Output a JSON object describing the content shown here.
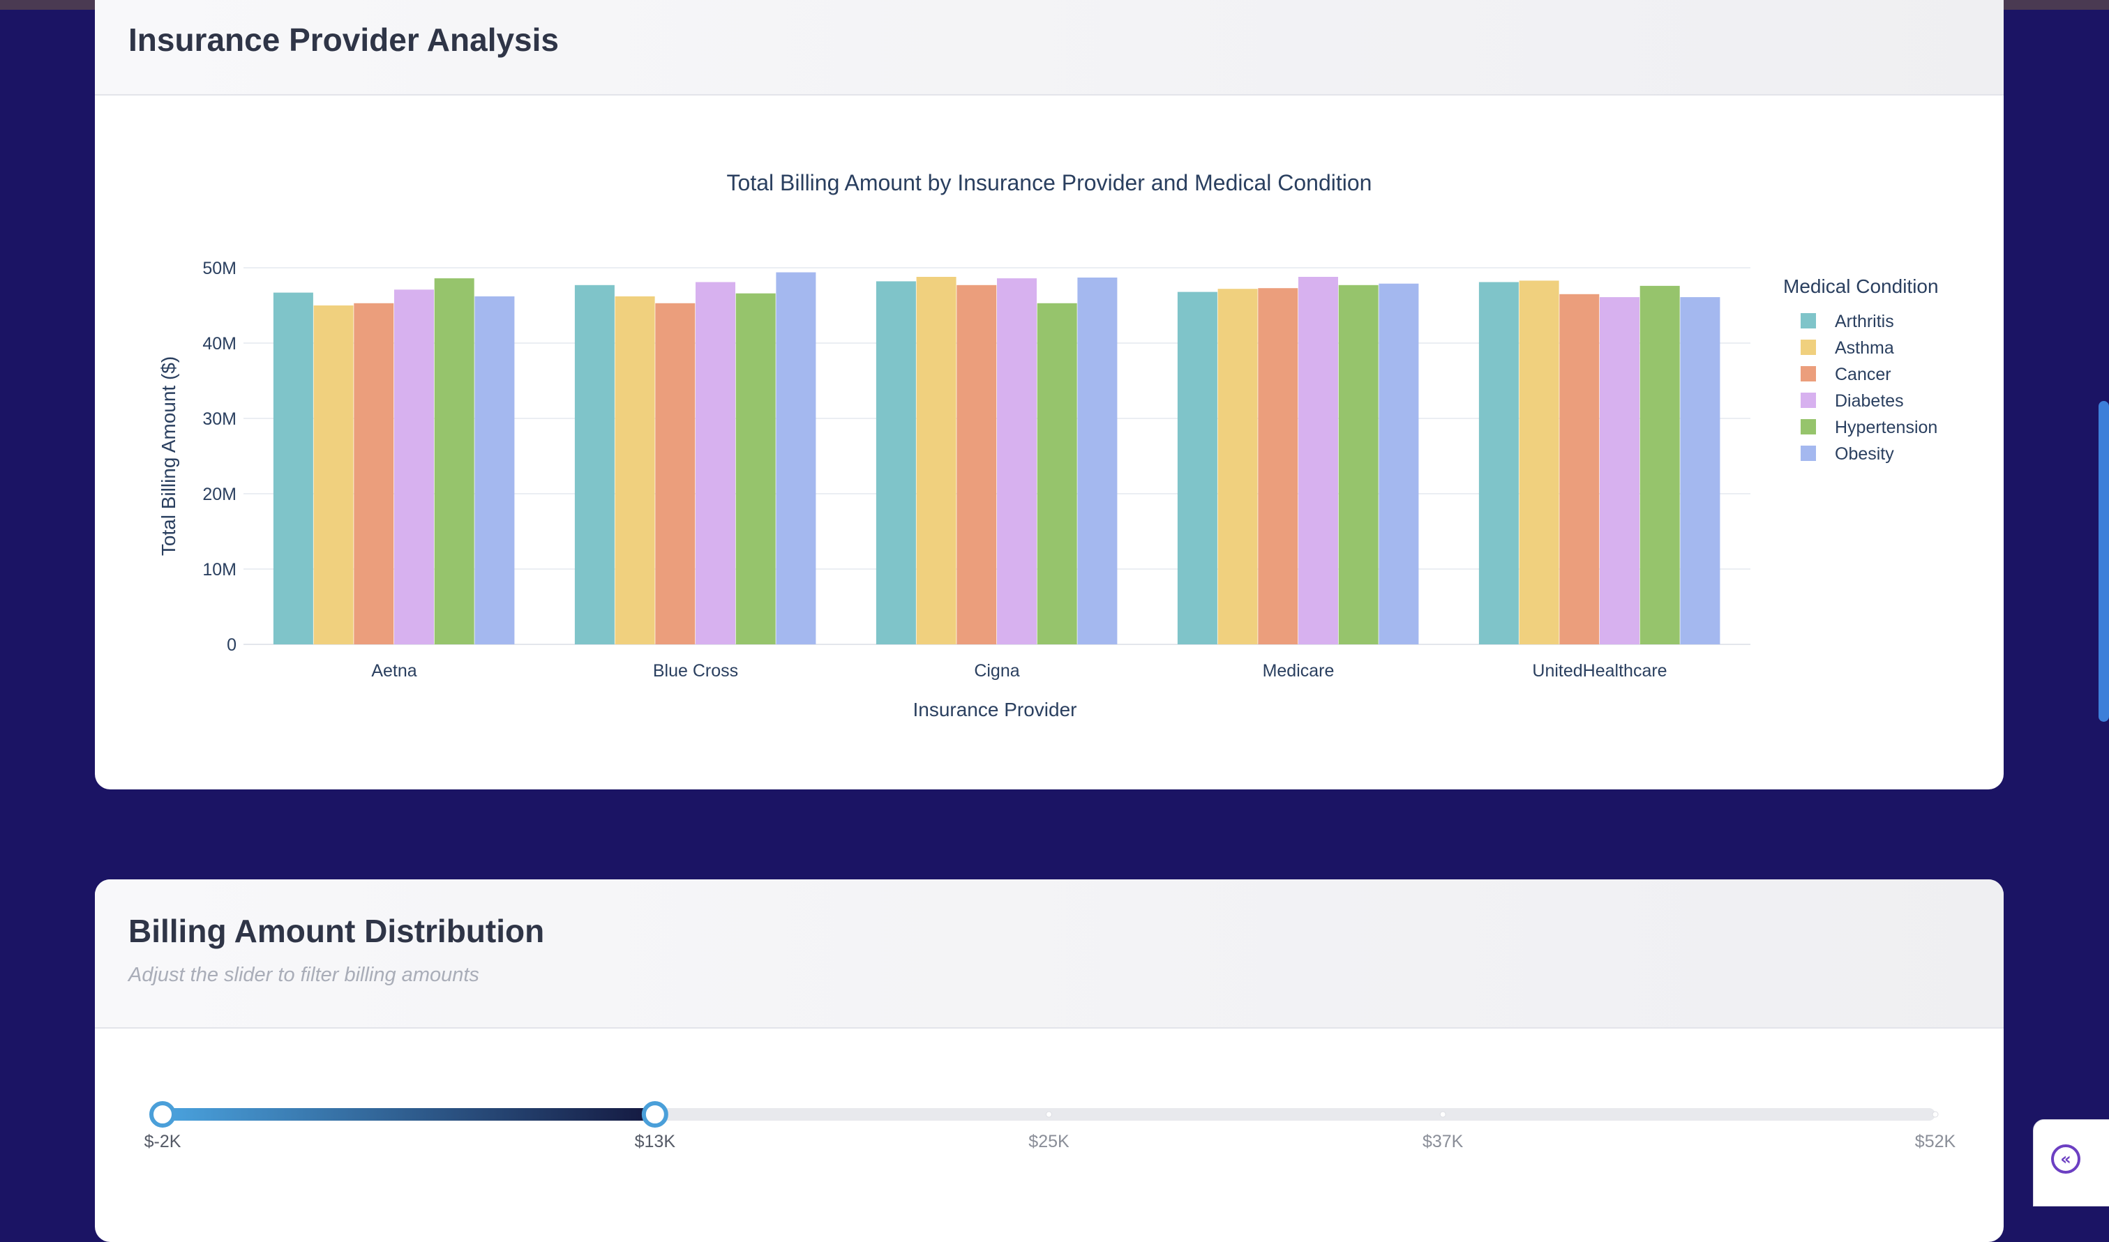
{
  "card1": {
    "title": "Insurance Provider Analysis"
  },
  "card2": {
    "title": "Billing Amount Distribution",
    "subtitle": "Adjust the slider to filter billing amounts"
  },
  "chart_data": {
    "type": "bar",
    "title": "Total Billing Amount by Insurance Provider and Medical Condition",
    "xlabel": "Insurance Provider",
    "ylabel": "Total Billing Amount ($)",
    "ylim": [
      0,
      50000000
    ],
    "yticks": [
      0,
      10000000,
      20000000,
      30000000,
      40000000,
      50000000
    ],
    "ytick_labels": [
      "0",
      "10M",
      "20M",
      "30M",
      "40M",
      "50M"
    ],
    "grid": true,
    "legend_title": "Medical Condition",
    "legend_position": "right",
    "categories": [
      "Aetna",
      "Blue Cross",
      "Cigna",
      "Medicare",
      "UnitedHealthcare"
    ],
    "series": [
      {
        "name": "Arthritis",
        "color": "#7fc4c9",
        "values": [
          46700000,
          47700000,
          48200000,
          46800000,
          48100000
        ]
      },
      {
        "name": "Asthma",
        "color": "#f0d07e",
        "values": [
          45000000,
          46200000,
          48800000,
          47200000,
          48300000
        ]
      },
      {
        "name": "Cancer",
        "color": "#eb9e7c",
        "values": [
          45300000,
          45300000,
          47700000,
          47300000,
          46500000
        ]
      },
      {
        "name": "Diabetes",
        "color": "#d7b1ef",
        "values": [
          47100000,
          48100000,
          48600000,
          48800000,
          46100000
        ]
      },
      {
        "name": "Hypertension",
        "color": "#96c46c",
        "values": [
          48600000,
          46600000,
          45300000,
          47700000,
          47600000
        ]
      },
      {
        "name": "Obesity",
        "color": "#a4b8ef",
        "values": [
          46200000,
          49400000,
          48700000,
          47900000,
          46100000
        ]
      }
    ]
  },
  "slider": {
    "min": -2000,
    "max": 52000,
    "range_low": -2000,
    "range_high": 13000,
    "marks": [
      {
        "value": -2000,
        "label": "$-2K"
      },
      {
        "value": 13000,
        "label": "$13K"
      },
      {
        "value": 25000,
        "label": "$25K"
      },
      {
        "value": 37000,
        "label": "$37K"
      },
      {
        "value": 52000,
        "label": "$52K"
      }
    ],
    "track_color": "#e8e9ed",
    "gradient_start": "#4aa3df",
    "gradient_end": "#14183f",
    "handle_color": "#4a9fd9"
  }
}
